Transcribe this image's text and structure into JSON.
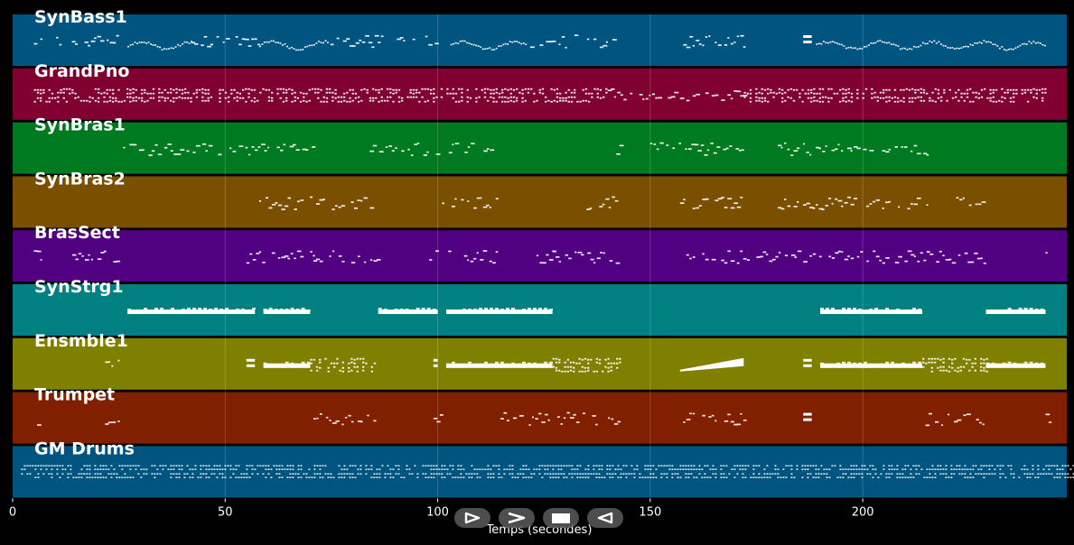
{
  "chart_data": {
    "type": "piano-roll",
    "title": "",
    "xlabel": "Temps (secondes)",
    "ylabel": "",
    "xlim": [
      0,
      248
    ],
    "x_ticks": [
      0,
      50,
      100,
      150,
      200
    ],
    "grid": true,
    "tracks": [
      {
        "name": "SynBass1",
        "color": "#005580",
        "segments": [
          [
            5,
            25,
            "scatter"
          ],
          [
            27,
            42,
            "dense"
          ],
          [
            42,
            58,
            "scatter"
          ],
          [
            58,
            74,
            "dense"
          ],
          [
            74,
            100,
            "scatter"
          ],
          [
            103,
            121,
            "dense"
          ],
          [
            121,
            142,
            "scatter"
          ],
          [
            157,
            172,
            "scatter"
          ],
          [
            186,
            188,
            "block"
          ],
          [
            189,
            243,
            "dense"
          ]
        ]
      },
      {
        "name": "GrandPno",
        "color": "#800030",
        "segments": [
          [
            5,
            100,
            "chords"
          ],
          [
            100,
            140,
            "chords"
          ],
          [
            140,
            157,
            "scatter"
          ],
          [
            157,
            172,
            "scatter"
          ],
          [
            172,
            243,
            "chords"
          ]
        ]
      },
      {
        "name": "SynBras1",
        "color": "#007a20",
        "segments": [
          [
            26,
            51,
            "scatter"
          ],
          [
            51,
            71,
            "scatter"
          ],
          [
            84,
            113,
            "scatter"
          ],
          [
            142,
            143,
            "scatter"
          ],
          [
            150,
            172,
            "scatter"
          ],
          [
            180,
            215,
            "scatter"
          ]
        ]
      },
      {
        "name": "SynBras2",
        "color": "#7a5000",
        "segments": [
          [
            58,
            85,
            "scatter"
          ],
          [
            101,
            114,
            "scatter"
          ],
          [
            135,
            143,
            "scatter"
          ],
          [
            157,
            172,
            "scatter"
          ],
          [
            180,
            215,
            "scatter"
          ],
          [
            222,
            229,
            "scatter"
          ]
        ]
      },
      {
        "name": "BrasSect",
        "color": "#500080",
        "segments": [
          [
            5,
            7,
            "scatter"
          ],
          [
            14,
            25,
            "scatter"
          ],
          [
            55,
            72,
            "scatter"
          ],
          [
            70,
            86,
            "scatter"
          ],
          [
            98,
            114,
            "scatter"
          ],
          [
            121,
            127,
            "scatter"
          ],
          [
            127,
            143,
            "scatter"
          ],
          [
            157,
            172,
            "scatter"
          ],
          [
            172,
            186,
            "scatter"
          ],
          [
            186,
            229,
            "scatter"
          ],
          [
            243,
            244,
            "scatter"
          ]
        ]
      },
      {
        "name": "SynStrg1",
        "color": "#008080",
        "segments": [
          [
            27,
            57,
            "solid"
          ],
          [
            59,
            70,
            "solid"
          ],
          [
            86,
            100,
            "solid"
          ],
          [
            102,
            127,
            "solid"
          ],
          [
            190,
            214,
            "solid"
          ],
          [
            229,
            243,
            "solid"
          ]
        ]
      },
      {
        "name": "Ensmble1",
        "color": "#808000",
        "segments": [
          [
            21,
            25,
            "scatter"
          ],
          [
            55,
            57,
            "block"
          ],
          [
            59,
            70,
            "solid"
          ],
          [
            70,
            85,
            "chords"
          ],
          [
            99,
            100,
            "block"
          ],
          [
            102,
            127,
            "solid"
          ],
          [
            127,
            143,
            "chords"
          ],
          [
            157,
            172,
            "ramp"
          ],
          [
            186,
            188,
            "block"
          ],
          [
            190,
            214,
            "solid"
          ],
          [
            214,
            229,
            "chords"
          ],
          [
            229,
            243,
            "solid"
          ]
        ]
      },
      {
        "name": "Trumpet",
        "color": "#802000",
        "segments": [
          [
            5,
            6,
            "scatter"
          ],
          [
            21,
            25,
            "scatter"
          ],
          [
            55,
            57,
            "scatter"
          ],
          [
            70,
            85,
            "scatter"
          ],
          [
            99,
            101,
            "scatter"
          ],
          [
            114,
            143,
            "scatter"
          ],
          [
            157,
            172,
            "scatter"
          ],
          [
            186,
            188,
            "block"
          ],
          [
            214,
            229,
            "scatter"
          ],
          [
            243,
            244,
            "scatter"
          ]
        ]
      },
      {
        "name": "GM Drums",
        "color": "#005580",
        "segments": [
          [
            2,
            250,
            "drums"
          ]
        ]
      }
    ]
  },
  "controls": [
    {
      "name": "play",
      "icon": "play-outline-icon"
    },
    {
      "name": "forward",
      "icon": "chevron-right-icon"
    },
    {
      "name": "stop",
      "icon": "stop-icon"
    },
    {
      "name": "back",
      "icon": "triangle-left-icon"
    }
  ]
}
